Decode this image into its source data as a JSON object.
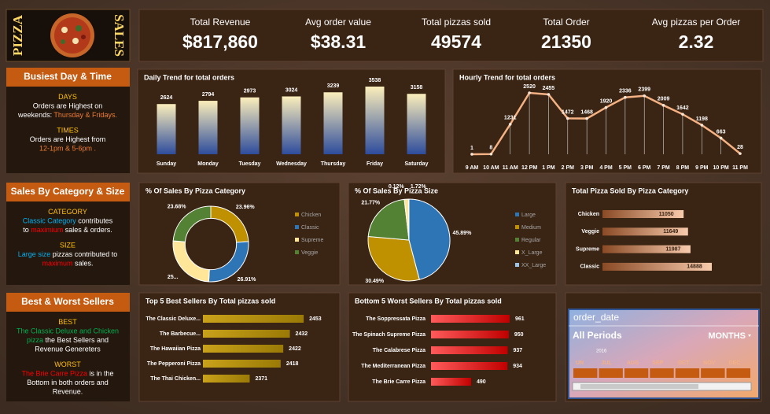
{
  "header": {
    "left": "PIZZA",
    "right": "SALES"
  },
  "kpis": [
    {
      "label": "Total Revenue",
      "value": "$817,860"
    },
    {
      "label": "Avg order value",
      "value": "$38.31"
    },
    {
      "label": "Total pizzas sold",
      "value": "49574"
    },
    {
      "label": "Total Order",
      "value": "21350"
    },
    {
      "label": "Avg pizzas per Order",
      "value": "2.32"
    }
  ],
  "sidebar": [
    {
      "title": "Busiest Day & Time",
      "blocks": [
        [
          [
            {
              "text": "DAYS",
              "color": "#ffc000"
            }
          ],
          [
            {
              "text": "Orders  are Highest on"
            }
          ],
          [
            {
              "text": "weekends: "
            },
            {
              "text": "Thursday & Fridays.",
              "color": "#ed7d31"
            }
          ]
        ],
        [
          [
            {
              "text": "TIMES",
              "color": "#ffc000"
            }
          ],
          [
            {
              "text": "Orders are Highest from"
            }
          ],
          [
            {
              "text": "12-1pm  &  5-6pm .",
              "color": "#ed7d31"
            }
          ]
        ]
      ]
    },
    {
      "title": "Sales By Category & Size",
      "blocks": [
        [
          [
            {
              "text": "CATEGORY",
              "color": "#ffc000"
            }
          ],
          [
            {
              "text": "Classic Category",
              "color": "#00b0f0"
            },
            {
              "text": " contributes"
            }
          ],
          [
            {
              "text": "to "
            },
            {
              "text": "maximium",
              "color": "#ff0000"
            },
            {
              "text": " sales & orders."
            }
          ]
        ],
        [
          [
            {
              "text": "SIZE",
              "color": "#ffc000"
            }
          ],
          [
            {
              "text": "Large size",
              "color": "#00b0f0"
            },
            {
              "text": " pizzas contributed to"
            }
          ],
          [
            {
              "text": "maximum",
              "color": "#ff0000"
            },
            {
              "text": " sales."
            }
          ]
        ]
      ]
    },
    {
      "title": "Best & Worst Sellers",
      "blocks": [
        [
          [
            {
              "text": "BEST",
              "color": "#ffc000"
            }
          ],
          [
            {
              "text": "The Classic Deluxe and  Chicken",
              "color": "#00b050"
            }
          ],
          [
            {
              "text": "pizza",
              "color": "#00b050"
            },
            {
              "text": " the Best Sellers and"
            }
          ],
          [
            {
              "text": "Revenue Genereters"
            }
          ]
        ],
        [
          [
            {
              "text": "WORST",
              "color": "#ffc000"
            }
          ],
          [
            {
              "text": "The Brie Carre Pizza",
              "color": "#ff0000"
            },
            {
              "text": "  is in the"
            }
          ],
          [
            {
              "text": "Bottom in  both orders and"
            }
          ],
          [
            {
              "text": "Revenue."
            }
          ]
        ]
      ]
    }
  ],
  "chart_data": [
    {
      "type": "bar",
      "title": "Daily Trend for total orders",
      "categories": [
        "Sunday",
        "Monday",
        "Tuesday",
        "Wednesday",
        "Thursday",
        "Friday",
        "Saturday"
      ],
      "values": [
        2624,
        2794,
        2973,
        3024,
        3239,
        3538,
        3158
      ],
      "colors": [
        "#fbeebb",
        "#2d4c9c"
      ]
    },
    {
      "type": "line",
      "title": "Hourly Trend for total orders",
      "categories": [
        "9 AM",
        "10 AM",
        "11 AM",
        "12 PM",
        "1 PM",
        "2 PM",
        "3 PM",
        "4 PM",
        "5 PM",
        "6 PM",
        "7 PM",
        "8 PM",
        "9 PM",
        "10 PM",
        "11 PM"
      ],
      "values": [
        1,
        8,
        1231,
        2520,
        2455,
        1472,
        1468,
        1920,
        2336,
        2399,
        2009,
        1642,
        1198,
        663,
        28
      ],
      "color": "#f4b183"
    },
    {
      "type": "pie",
      "donut": true,
      "title": "% Of Sales By Pizza Category",
      "categories": [
        "Chicken",
        "Classic",
        "Supreme",
        "Veggie"
      ],
      "values": [
        23.96,
        26.91,
        25.46,
        23.68
      ],
      "value_labels": [
        "23.96%",
        "26.91%",
        "25...",
        "23.68%"
      ],
      "colors": [
        "#bf9000",
        "#2e75b6",
        "#ffe699",
        "#548235"
      ]
    },
    {
      "type": "pie",
      "donut": false,
      "title": "% Of Sales By Pizza Size",
      "categories": [
        "Large",
        "Medium",
        "Regular",
        "X_Large",
        "XX_Large"
      ],
      "values": [
        45.89,
        30.49,
        21.77,
        1.72,
        0.12
      ],
      "value_labels": [
        "45.89%",
        "30.49%",
        "21.77%",
        "1.72%",
        "0.12%"
      ],
      "colors": [
        "#2e75b6",
        "#bf9000",
        "#548235",
        "#ffe699",
        "#9dc3e6"
      ]
    },
    {
      "type": "bar",
      "horizontal": true,
      "title": "Total Pizza Sold By Pizza Category",
      "categories": [
        "Chicken",
        "Veggie",
        "Supreme",
        "Classic"
      ],
      "values": [
        11050,
        11649,
        11987,
        14888
      ],
      "colors": [
        "#8a4a25",
        "#f8cbad"
      ]
    },
    {
      "type": "bar",
      "horizontal": true,
      "title": "Top 5 Best Sellers By Total pizzas sold",
      "categories": [
        "The Classic Deluxe...",
        "The Barbecue...",
        "The Hawaiian Pizza",
        "The Pepperoni Pizza",
        "The Thai Chicken..."
      ],
      "values": [
        2453,
        2432,
        2422,
        2418,
        2371
      ],
      "xlim": [
        2300,
        2460
      ],
      "colors": [
        "#c9a21a",
        "#9a7a06"
      ]
    },
    {
      "type": "bar",
      "horizontal": true,
      "title": "Bottom 5 Worst Sellers By Total pizzas sold",
      "categories": [
        "The Soppressata Pizza",
        "The Spinach Supreme Pizza",
        "The Calabrese Pizza",
        "The Mediterranean Pizza",
        "The Brie Carre Pizza"
      ],
      "values": [
        961,
        950,
        937,
        934,
        490
      ],
      "colors": [
        "#ff5a5a",
        "#c00000"
      ]
    }
  ],
  "slicer": {
    "title": "order_date",
    "period": "All Periods",
    "level": "MONTHS",
    "year": "2016",
    "months": [
      "UN",
      "JUL",
      "AUG",
      "SEP",
      "OCT",
      "NOV",
      "DEC"
    ]
  }
}
